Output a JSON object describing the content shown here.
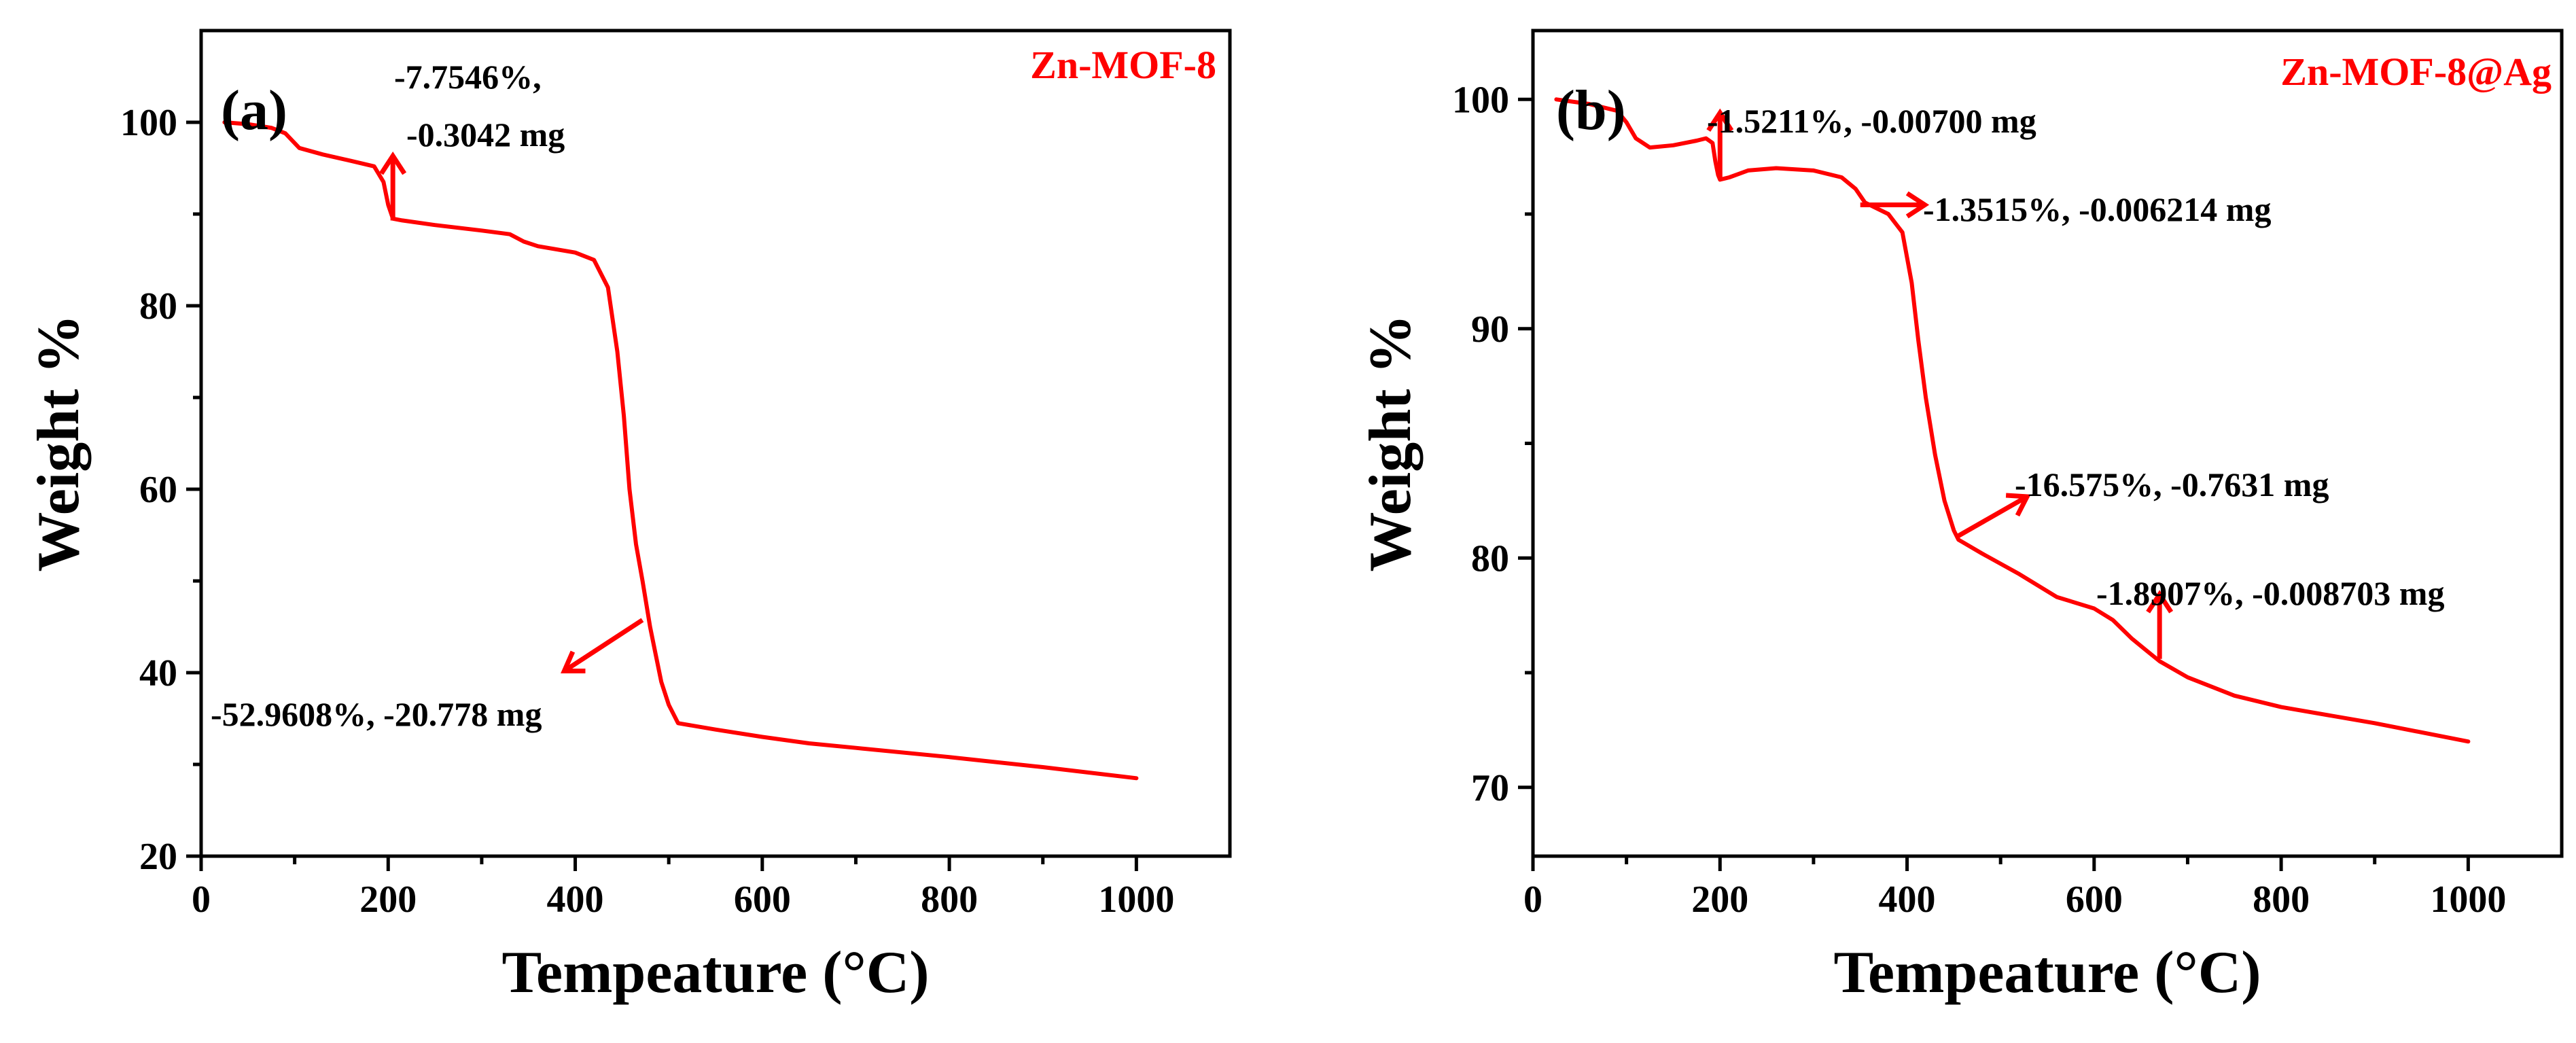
{
  "colors": {
    "curve": "#ff0000",
    "axis": "#000000",
    "background": "#ffffff"
  },
  "chart_data": [
    {
      "type": "line",
      "panel": "(a)",
      "series_name": "Zn-MOF-8",
      "xlabel": "Tempeature (°C)",
      "ylabel": "Weight %",
      "xlim": [
        0,
        1100
      ],
      "ylim": [
        20,
        110
      ],
      "xticks": [
        0,
        200,
        400,
        600,
        800,
        1000
      ],
      "yticks": [
        20,
        40,
        60,
        80,
        100
      ],
      "grid": false,
      "legend": "top-right",
      "series": [
        {
          "name": "Zn-MOF-8",
          "x": [
            25,
            50,
            75,
            90,
            105,
            130,
            160,
            185,
            195,
            200,
            205,
            215,
            250,
            300,
            330,
            345,
            360,
            400,
            420,
            435,
            445,
            452,
            458,
            465,
            472,
            480,
            486,
            492,
            500,
            510,
            550,
            600,
            650,
            700,
            800,
            900,
            1000
          ],
          "y": [
            100,
            99.8,
            99.4,
            98.8,
            97.2,
            96.5,
            95.8,
            95.2,
            93.5,
            91,
            89.5,
            89.3,
            88.8,
            88.2,
            87.8,
            87,
            86.5,
            85.8,
            85,
            82,
            75,
            68,
            60,
            54,
            50,
            45,
            42,
            39,
            36.5,
            34.5,
            33.8,
            33,
            32.3,
            31.8,
            30.8,
            29.7,
            28.5
          ]
        }
      ],
      "annotations": [
        {
          "lines": [
            "-7.7546%,",
            "-0.3042 mg"
          ],
          "arrow_at": [
            205,
            89.3
          ],
          "arrow_dir": "up"
        },
        {
          "lines": [
            "-52.9608%, -20.778 mg"
          ],
          "arrow_at": [
            490,
            45
          ],
          "arrow_dir": "down-left"
        }
      ]
    },
    {
      "type": "line",
      "panel": "(b)",
      "series_name": "Zn-MOF-8@Ag",
      "xlabel": "Tempeature (°C)",
      "ylabel": "Weight %",
      "xlim": [
        0,
        1100
      ],
      "ylim": [
        67,
        103
      ],
      "xticks": [
        0,
        200,
        400,
        600,
        800,
        1000
      ],
      "yticks": [
        70,
        80,
        90,
        100
      ],
      "grid": false,
      "legend": "top-right",
      "series": [
        {
          "name": "Zn-MOF-8@Ag",
          "x": [
            25,
            60,
            90,
            100,
            110,
            125,
            150,
            175,
            185,
            192,
            195,
            198,
            200,
            210,
            230,
            260,
            300,
            330,
            345,
            355,
            365,
            380,
            395,
            405,
            412,
            420,
            430,
            440,
            450,
            455,
            480,
            520,
            560,
            600,
            620,
            640,
            655,
            670,
            700,
            750,
            800,
            900,
            1000
          ],
          "y": [
            100,
            99.8,
            99.5,
            99,
            98.3,
            97.9,
            98,
            98.2,
            98.3,
            98.1,
            97.3,
            96.7,
            96.5,
            96.6,
            96.9,
            97,
            96.9,
            96.6,
            96.1,
            95.5,
            95.3,
            95,
            94.2,
            92,
            89.5,
            87,
            84.5,
            82.5,
            81.2,
            80.8,
            80.2,
            79.3,
            78.3,
            77.8,
            77.3,
            76.5,
            76,
            75.5,
            74.8,
            74,
            73.5,
            72.8,
            72
          ]
        }
      ],
      "annotations": [
        {
          "lines": [
            "-1.5211%, -0.00700 mg"
          ],
          "arrow_at": [
            200,
            96.6
          ],
          "arrow_dir": "up"
        },
        {
          "lines": [
            "-1.3515%, -0.006214 mg"
          ],
          "arrow_at": [
            350,
            95.4
          ],
          "arrow_dir": "right"
        },
        {
          "lines": [
            "-16.575%, -0.7631 mg"
          ],
          "arrow_at": [
            452,
            80.9
          ],
          "arrow_dir": "up-right"
        },
        {
          "lines": [
            "-1.8907%, -0.008703 mg"
          ],
          "arrow_at": [
            670,
            75.6
          ],
          "arrow_dir": "up"
        }
      ]
    }
  ]
}
